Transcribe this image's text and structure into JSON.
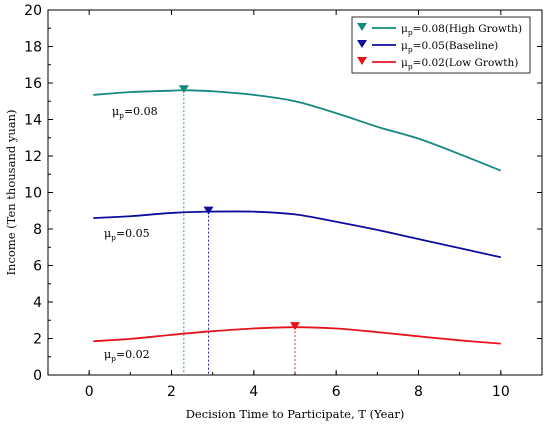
{
  "chart_data": {
    "type": "line",
    "title": "",
    "xlabel": "Decision Time to Participate, T (Year)",
    "ylabel": "Income (Ten thousand yuan)",
    "xlim": [
      -1,
      11
    ],
    "ylim": [
      0,
      20
    ],
    "xticks": [
      0,
      2,
      4,
      6,
      8,
      10
    ],
    "yticks": [
      0,
      2,
      4,
      6,
      8,
      10,
      12,
      14,
      16,
      18,
      20
    ],
    "legend": "top-right",
    "grid": false,
    "series": [
      {
        "name_prefix": "μ",
        "name_sub": "p",
        "name_rest": "=0.08(High Growth)",
        "color": "#13897f",
        "x": [
          0.1,
          1,
          2,
          2.3,
          3,
          4,
          5,
          6,
          7,
          8,
          9,
          10
        ],
        "y": [
          15.35,
          15.5,
          15.58,
          15.6,
          15.55,
          15.35,
          15.0,
          14.35,
          13.6,
          12.95,
          12.1,
          11.2
        ],
        "optimum": {
          "x": 2.3,
          "y": 15.6
        },
        "annotation": {
          "prefix": "μ",
          "sub": "p",
          "rest": "=0.08"
        }
      },
      {
        "name_prefix": "μ",
        "name_sub": "p",
        "name_rest": "=0.05(Baseline)",
        "color": "#0b0f9c",
        "x": [
          0.1,
          1,
          2,
          2.9,
          4,
          5,
          6,
          7,
          8,
          9,
          10
        ],
        "y": [
          8.6,
          8.7,
          8.88,
          8.95,
          8.95,
          8.8,
          8.4,
          7.95,
          7.45,
          6.95,
          6.45
        ],
        "optimum": {
          "x": 2.9,
          "y": 8.95
        },
        "annotation": {
          "prefix": "μ",
          "sub": "p",
          "rest": "=0.05"
        }
      },
      {
        "name_prefix": "μ",
        "name_sub": "p",
        "name_rest": "=0.02(Low Growth)",
        "color": "#e8141c",
        "x": [
          0.1,
          1,
          2,
          3,
          4,
          5,
          6,
          7,
          8,
          9,
          10
        ],
        "y": [
          1.85,
          1.98,
          2.2,
          2.4,
          2.55,
          2.62,
          2.55,
          2.35,
          2.12,
          1.9,
          1.72
        ],
        "optimum": {
          "x": 5.0,
          "y": 2.62
        },
        "annotation": {
          "prefix": "μ",
          "sub": "p",
          "rest": "=0.02"
        }
      }
    ]
  }
}
